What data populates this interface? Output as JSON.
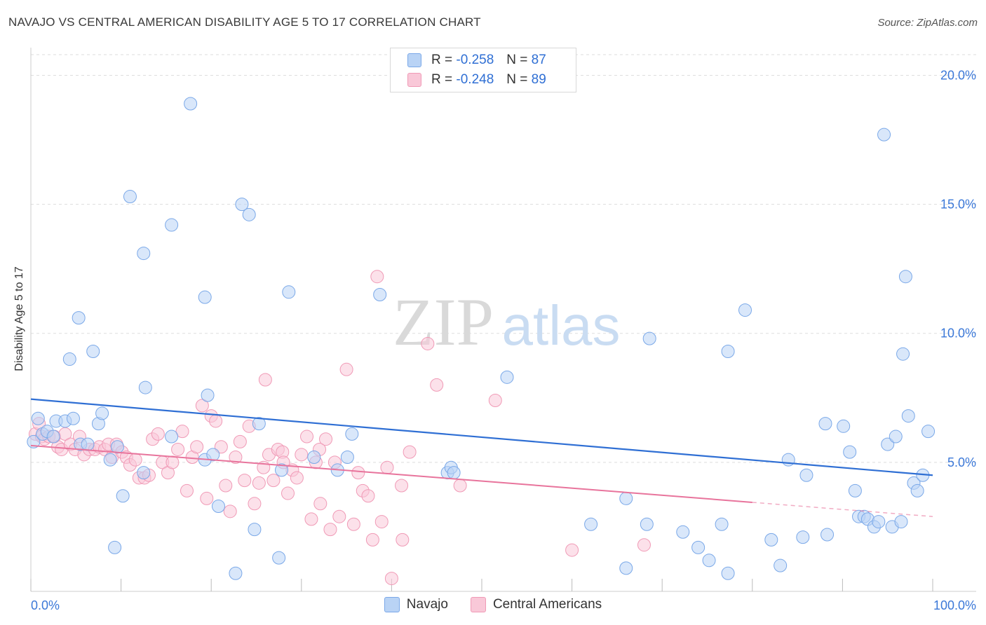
{
  "title": "NAVAJO VS CENTRAL AMERICAN DISABILITY AGE 5 TO 17 CORRELATION CHART",
  "source": "Source: ZipAtlas.com",
  "watermark": {
    "zip": "ZIP",
    "atlas": "atlas"
  },
  "legend": {
    "rows": [
      {
        "r_label": "R =",
        "r_value": "-0.258",
        "n_label": "N =",
        "n_value": "87",
        "fill": "#b9d3f5",
        "stroke": "#7aa8e8"
      },
      {
        "r_label": "R =",
        "r_value": "-0.248",
        "n_label": "N =",
        "n_value": "89",
        "fill": "#f9c8d8",
        "stroke": "#f09ab6"
      }
    ]
  },
  "bottom_legend": [
    {
      "label": "Navajo",
      "fill": "#b9d3f5",
      "stroke": "#7aa8e8"
    },
    {
      "label": "Central Americans",
      "fill": "#f9c8d8",
      "stroke": "#f09ab6"
    }
  ],
  "chart_data": {
    "type": "scatter",
    "title": "NAVAJO VS CENTRAL AMERICAN DISABILITY AGE 5 TO 17 CORRELATION CHART",
    "xlabel": "",
    "ylabel": "Disability Age 5 to 17",
    "xlim": [
      0,
      100
    ],
    "ylim": [
      0,
      20.8
    ],
    "x_tick_labels": [
      "0.0%",
      "100.0%"
    ],
    "y_ticks": [
      5,
      10,
      15,
      20
    ],
    "y_tick_labels": [
      "5.0%",
      "10.0%",
      "15.0%",
      "20.0%"
    ],
    "grid": true,
    "legend_position": "top-center",
    "colors": {
      "navajo": "#2f6fd4",
      "central": "#e8749c",
      "navajo_point": "#b9d3f5",
      "central_point": "#f9c8d8"
    },
    "series": [
      {
        "name": "Navajo",
        "trend": {
          "x": [
            0,
            100
          ],
          "y": [
            7.45,
            4.5
          ],
          "dashed_from": null
        },
        "points": [
          [
            0.3,
            5.8
          ],
          [
            0.8,
            6.7
          ],
          [
            1.3,
            6.1
          ],
          [
            1.8,
            6.2
          ],
          [
            2.5,
            6.0
          ],
          [
            2.8,
            6.6
          ],
          [
            3.8,
            6.6
          ],
          [
            4.7,
            6.7
          ],
          [
            5.5,
            5.7
          ],
          [
            5.3,
            10.6
          ],
          [
            4.3,
            9.0
          ],
          [
            6.3,
            5.7
          ],
          [
            6.9,
            9.3
          ],
          [
            7.5,
            6.5
          ],
          [
            7.9,
            6.9
          ],
          [
            8.8,
            5.1
          ],
          [
            9.6,
            5.6
          ],
          [
            10.2,
            3.7
          ],
          [
            9.3,
            1.7
          ],
          [
            11.0,
            15.3
          ],
          [
            12.5,
            4.6
          ],
          [
            12.5,
            13.1
          ],
          [
            12.7,
            7.9
          ],
          [
            15.6,
            14.2
          ],
          [
            17.7,
            18.9
          ],
          [
            15.6,
            6.0
          ],
          [
            19.3,
            11.4
          ],
          [
            19.3,
            5.1
          ],
          [
            19.6,
            7.6
          ],
          [
            20.2,
            5.3
          ],
          [
            20.8,
            3.3
          ],
          [
            22.7,
            0.7
          ],
          [
            23.4,
            15.0
          ],
          [
            24.2,
            14.6
          ],
          [
            24.8,
            2.4
          ],
          [
            25.3,
            6.5
          ],
          [
            27.5,
            1.3
          ],
          [
            27.8,
            4.7
          ],
          [
            28.6,
            11.6
          ],
          [
            31.4,
            5.2
          ],
          [
            34.0,
            4.7
          ],
          [
            35.1,
            5.2
          ],
          [
            35.6,
            6.1
          ],
          [
            38.7,
            11.5
          ],
          [
            46.2,
            4.6
          ],
          [
            46.6,
            4.8
          ],
          [
            46.9,
            4.6
          ],
          [
            52.8,
            8.3
          ],
          [
            62.1,
            2.6
          ],
          [
            66.0,
            3.6
          ],
          [
            66.0,
            0.9
          ],
          [
            68.3,
            2.6
          ],
          [
            68.6,
            9.8
          ],
          [
            72.3,
            2.3
          ],
          [
            74.0,
            1.7
          ],
          [
            75.2,
            1.2
          ],
          [
            76.6,
            2.6
          ],
          [
            77.3,
            0.7
          ],
          [
            77.3,
            9.3
          ],
          [
            79.2,
            10.9
          ],
          [
            82.1,
            2.0
          ],
          [
            83.1,
            1.0
          ],
          [
            84.0,
            5.1
          ],
          [
            85.6,
            2.1
          ],
          [
            86.0,
            4.5
          ],
          [
            88.1,
            6.5
          ],
          [
            88.3,
            2.2
          ],
          [
            90.1,
            6.4
          ],
          [
            90.8,
            5.4
          ],
          [
            91.4,
            3.9
          ],
          [
            91.8,
            2.9
          ],
          [
            92.4,
            2.9
          ],
          [
            92.8,
            2.8
          ],
          [
            93.5,
            2.5
          ],
          [
            94.0,
            2.7
          ],
          [
            94.6,
            17.7
          ],
          [
            95.0,
            5.7
          ],
          [
            95.5,
            2.5
          ],
          [
            95.9,
            6.0
          ],
          [
            96.5,
            2.7
          ],
          [
            96.7,
            9.2
          ],
          [
            97.0,
            12.2
          ],
          [
            97.3,
            6.8
          ],
          [
            97.9,
            4.2
          ],
          [
            98.3,
            3.9
          ],
          [
            98.9,
            4.5
          ],
          [
            99.5,
            6.2
          ]
        ]
      },
      {
        "name": "Central Americans",
        "trend": {
          "x": [
            0,
            100
          ],
          "y": [
            5.65,
            2.9
          ],
          "dashed_from": 80
        },
        "points": [
          [
            0.5,
            6.1
          ],
          [
            0.9,
            6.5
          ],
          [
            1.2,
            6.0
          ],
          [
            1.5,
            5.9
          ],
          [
            2.0,
            6.0
          ],
          [
            2.6,
            6.0
          ],
          [
            3.0,
            5.6
          ],
          [
            3.4,
            5.5
          ],
          [
            3.8,
            6.1
          ],
          [
            4.4,
            5.7
          ],
          [
            4.9,
            5.5
          ],
          [
            5.4,
            6.0
          ],
          [
            5.9,
            5.3
          ],
          [
            6.5,
            5.5
          ],
          [
            7.1,
            5.5
          ],
          [
            7.6,
            5.6
          ],
          [
            8.2,
            5.5
          ],
          [
            8.6,
            5.7
          ],
          [
            9.0,
            5.2
          ],
          [
            9.5,
            5.7
          ],
          [
            10.1,
            5.4
          ],
          [
            10.6,
            5.2
          ],
          [
            11.0,
            4.9
          ],
          [
            11.6,
            5.1
          ],
          [
            12.0,
            4.4
          ],
          [
            12.6,
            4.4
          ],
          [
            13.1,
            4.5
          ],
          [
            13.5,
            5.9
          ],
          [
            14.1,
            6.1
          ],
          [
            14.6,
            5.0
          ],
          [
            15.2,
            4.6
          ],
          [
            15.7,
            5.0
          ],
          [
            16.3,
            5.5
          ],
          [
            16.8,
            6.2
          ],
          [
            17.3,
            3.9
          ],
          [
            17.9,
            5.2
          ],
          [
            18.4,
            5.6
          ],
          [
            19.0,
            7.2
          ],
          [
            19.5,
            3.6
          ],
          [
            20.0,
            6.8
          ],
          [
            20.5,
            6.6
          ],
          [
            21.1,
            5.6
          ],
          [
            21.6,
            4.1
          ],
          [
            22.1,
            3.1
          ],
          [
            22.7,
            5.2
          ],
          [
            23.2,
            5.8
          ],
          [
            23.7,
            4.3
          ],
          [
            24.2,
            6.4
          ],
          [
            24.8,
            3.4
          ],
          [
            25.3,
            4.2
          ],
          [
            25.8,
            4.8
          ],
          [
            26.4,
            5.3
          ],
          [
            26.9,
            4.3
          ],
          [
            27.4,
            5.5
          ],
          [
            27.9,
            5.4
          ],
          [
            28.5,
            3.8
          ],
          [
            29.0,
            4.7
          ],
          [
            29.5,
            4.4
          ],
          [
            30.0,
            5.3
          ],
          [
            30.6,
            6.0
          ],
          [
            31.1,
            2.8
          ],
          [
            31.6,
            5.0
          ],
          [
            32.1,
            3.4
          ],
          [
            32.7,
            5.9
          ],
          [
            33.2,
            2.4
          ],
          [
            33.7,
            5.0
          ],
          [
            34.2,
            2.9
          ],
          [
            35.0,
            8.6
          ],
          [
            35.8,
            2.6
          ],
          [
            36.3,
            4.6
          ],
          [
            36.8,
            3.9
          ],
          [
            37.4,
            3.7
          ],
          [
            37.9,
            2.0
          ],
          [
            38.4,
            12.2
          ],
          [
            38.9,
            2.7
          ],
          [
            39.5,
            4.8
          ],
          [
            40.0,
            0.5
          ],
          [
            41.1,
            4.1
          ],
          [
            41.2,
            2.0
          ],
          [
            42.0,
            5.4
          ],
          [
            44.0,
            9.6
          ],
          [
            45.0,
            8.0
          ],
          [
            47.6,
            4.1
          ],
          [
            51.5,
            7.4
          ],
          [
            60.0,
            1.6
          ],
          [
            68.0,
            1.8
          ],
          [
            26.0,
            8.2
          ],
          [
            32.0,
            5.5
          ],
          [
            28.0,
            5.0
          ]
        ]
      }
    ]
  }
}
